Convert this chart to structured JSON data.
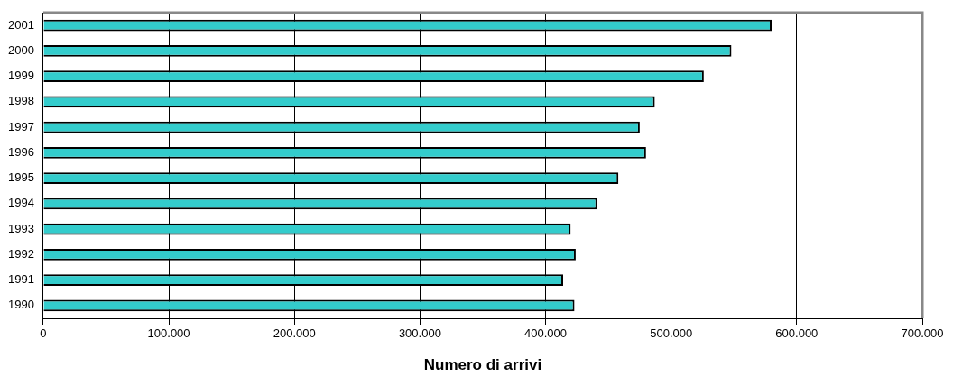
{
  "chart_data": {
    "type": "bar",
    "orientation": "horizontal",
    "xlabel": "Numero di arrivi",
    "categories": [
      "2001",
      "2000",
      "1999",
      "1998",
      "1997",
      "1996",
      "1995",
      "1994",
      "1993",
      "1992",
      "1991",
      "1990"
    ],
    "values": [
      580000,
      548000,
      526000,
      487000,
      475000,
      480000,
      458000,
      441000,
      420000,
      424000,
      414000,
      423000
    ],
    "color": "#33cccc",
    "xlim": [
      0,
      700000
    ],
    "xticks": [
      0,
      {
        "value": 100000,
        "label": "100.000"
      },
      {
        "value": 200000,
        "label": "200.000"
      },
      {
        "value": 300000,
        "label": "300.000"
      },
      {
        "value": 400000,
        "label": "400.000"
      },
      {
        "value": 500000,
        "label": "500.000"
      },
      {
        "value": 600000,
        "label": "600.000"
      },
      {
        "value": 700000,
        "label": "700.000"
      }
    ],
    "grid": "x",
    "legend": false
  }
}
